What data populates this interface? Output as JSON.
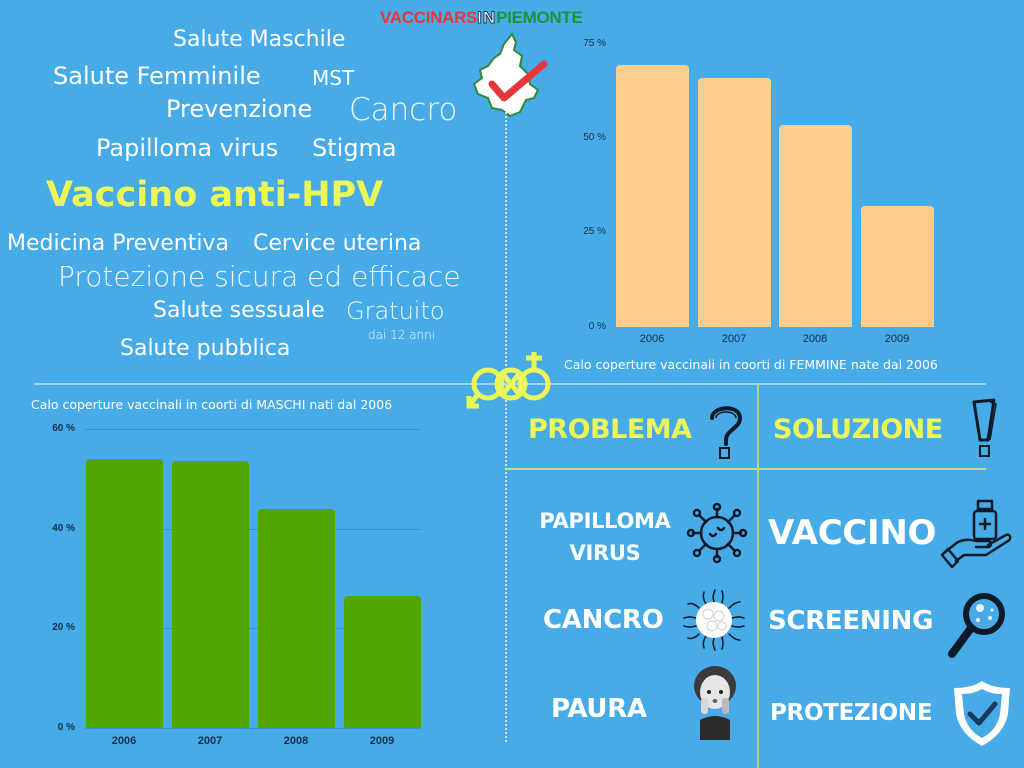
{
  "logo": {
    "part1": "VACCINARS",
    "part2": "IN",
    "part3": "PIEMONTE",
    "colors": {
      "red": "#e8373a",
      "green": "#20913c"
    }
  },
  "word_cloud": {
    "headline": "Vaccino anti-HPV",
    "words": [
      "Salute Maschile",
      "Salute Femminile",
      "MST",
      "Prevenzione",
      "Cancro",
      "Papilloma virus",
      "Stigma",
      "Medicina Preventiva",
      "Cervice uterina",
      "Protezione sicura ed efficace",
      "Salute sessuale",
      "Gratuito",
      "dai 12 anni",
      "Salute pubblica"
    ]
  },
  "colors": {
    "background": "#47abe8",
    "accent_yellow": "#eaf65a",
    "female_bar": "#ffcd8c",
    "male_bar": "#52a604",
    "axis_text": "#14304a"
  },
  "chart_data": [
    {
      "type": "bar",
      "title": "Calo coperture vaccinali in coorti di FEMMINE nate dal 2006",
      "categories": [
        "2006",
        "2007",
        "2008",
        "2009"
      ],
      "values": [
        69.5,
        66,
        53.5,
        32
      ],
      "xlabel": "",
      "ylabel": "",
      "ylim": [
        0,
        75
      ],
      "yticks": [
        "0 %",
        "25 %",
        "50 %",
        "75 %"
      ],
      "grid": false,
      "bar_color": "#ffcd8c"
    },
    {
      "type": "bar",
      "title": "Calo coperture vaccinali in coorti di MASCHI nati dal 2006",
      "categories": [
        "2006",
        "2007",
        "2008",
        "2009"
      ],
      "values": [
        54,
        53.5,
        44,
        26.5
      ],
      "xlabel": "",
      "ylabel": "",
      "ylim": [
        0,
        60
      ],
      "yticks": [
        "0 %",
        "20 %",
        "40 %",
        "60 %"
      ],
      "grid": true,
      "bar_color": "#52a604"
    }
  ],
  "problem_solution": {
    "problem_header": "PROBLEMA",
    "solution_header": "SOLUZIONE",
    "problems": [
      {
        "label": "PAPILLOMA VIRUS",
        "line1": "PAPILLOMA",
        "line2": "VIRUS",
        "icon": "virus-icon"
      },
      {
        "label": "CANCRO",
        "icon": "cancer-cell-icon"
      },
      {
        "label": "PAURA",
        "icon": "worried-person-icon"
      }
    ],
    "solutions": [
      {
        "label": "VACCINO",
        "icon": "hand-vaccine-icon"
      },
      {
        "label": "SCREENING",
        "icon": "magnifier-icon"
      },
      {
        "label": "PROTEZIONE",
        "icon": "shield-check-icon"
      }
    ]
  }
}
